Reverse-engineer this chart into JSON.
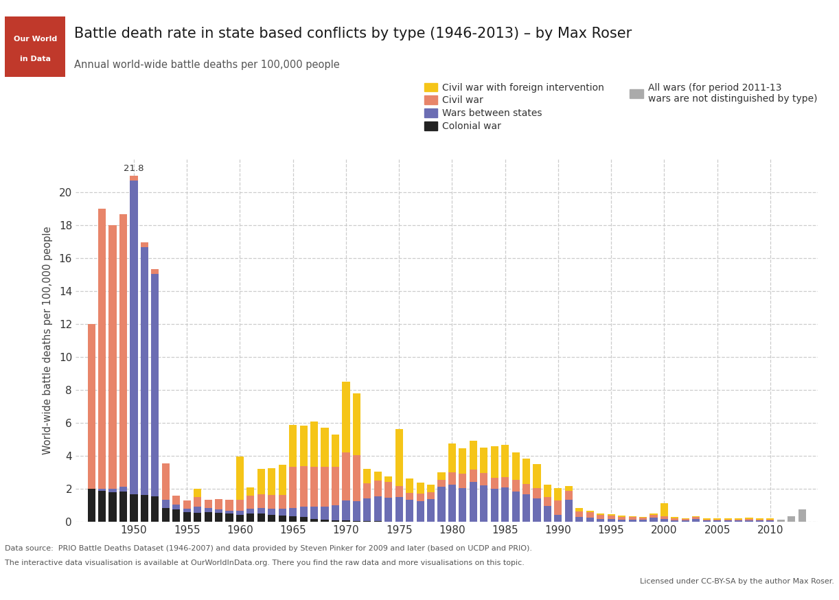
{
  "title": "Battle death rate in state based conflicts by type (1946-2013) – by Max Roser",
  "subtitle": "Annual world-wide battle deaths per 100,000 people",
  "ylabel": "World-wide battle deaths per 100,000 people",
  "source_line1": "Data source:  PRIO Battle Deaths Dataset (1946-2007) and data provided by Steven Pinker for 2009 and later (based on UCDP and PRIO).",
  "source_line2": "The interactive data visualisation is available at OurWorldInData.org. There you find the raw data and more visualisations on this topic.",
  "license_text": "Licensed under CC-BY-SA by the author Max Roser.",
  "colors": {
    "civil_war_foreign": "#F5C518",
    "civil_war": "#E8856A",
    "wars_between_states": "#6B6DB3",
    "colonial_war": "#222222",
    "all_wars": "#AAAAAA"
  },
  "legend_labels": {
    "civil_war_foreign": "Civil war with foreign intervention",
    "civil_war": "Civil war",
    "wars_between_states": "Wars between states",
    "colonial_war": "Colonial war",
    "all_wars_line1": "All wars (for period 2011-13",
    "all_wars_line2": "wars are not distinguished by type)"
  },
  "years": [
    1946,
    1947,
    1948,
    1949,
    1950,
    1951,
    1952,
    1953,
    1954,
    1955,
    1956,
    1957,
    1958,
    1959,
    1960,
    1961,
    1962,
    1963,
    1964,
    1965,
    1966,
    1967,
    1968,
    1969,
    1970,
    1971,
    1972,
    1973,
    1974,
    1975,
    1976,
    1977,
    1978,
    1979,
    1980,
    1981,
    1982,
    1983,
    1984,
    1985,
    1986,
    1987,
    1988,
    1989,
    1990,
    1991,
    1992,
    1993,
    1994,
    1995,
    1996,
    1997,
    1998,
    1999,
    2000,
    2001,
    2002,
    2003,
    2004,
    2005,
    2006,
    2007,
    2008,
    2009,
    2010,
    2011,
    2012,
    2013
  ],
  "colonial_war": [
    2.0,
    1.9,
    1.8,
    1.85,
    1.7,
    1.65,
    1.55,
    0.85,
    0.75,
    0.6,
    0.55,
    0.6,
    0.55,
    0.5,
    0.45,
    0.5,
    0.5,
    0.45,
    0.4,
    0.35,
    0.3,
    0.2,
    0.15,
    0.1,
    0.1,
    0.05,
    0.05,
    0.05,
    0.03,
    0.03,
    0.03,
    0.02,
    0.02,
    0.02,
    0.02,
    0.02,
    0.01,
    0.01,
    0.01,
    0.01,
    0.01,
    0.01,
    0.01,
    0.01,
    0.0,
    0.0,
    0.0,
    0.0,
    0.0,
    0.0,
    0.0,
    0.0,
    0.0,
    0.0,
    0.0,
    0.0,
    0.0,
    0.0,
    0.0,
    0.0,
    0.0,
    0.0,
    0.0,
    0.0,
    0.0,
    0.0,
    0.0,
    0.0
  ],
  "wars_between": [
    0.0,
    0.1,
    0.2,
    0.3,
    19.0,
    15.0,
    13.5,
    0.5,
    0.3,
    0.2,
    0.4,
    0.25,
    0.2,
    0.2,
    0.25,
    0.3,
    0.35,
    0.35,
    0.4,
    0.5,
    0.65,
    0.75,
    0.8,
    0.9,
    1.2,
    1.2,
    1.4,
    1.5,
    1.45,
    1.5,
    1.3,
    1.25,
    1.35,
    2.1,
    2.25,
    2.05,
    2.4,
    2.2,
    2.0,
    2.1,
    1.85,
    1.65,
    1.4,
    0.95,
    0.45,
    1.35,
    0.3,
    0.28,
    0.2,
    0.18,
    0.14,
    0.12,
    0.12,
    0.25,
    0.18,
    0.1,
    0.1,
    0.18,
    0.08,
    0.08,
    0.08,
    0.08,
    0.08,
    0.08,
    0.08,
    0.0,
    0.0,
    0.0
  ],
  "civil_war": [
    10.0,
    17.0,
    16.0,
    16.5,
    0.3,
    0.28,
    0.28,
    2.2,
    0.55,
    0.5,
    0.55,
    0.5,
    0.65,
    0.65,
    0.65,
    0.8,
    0.85,
    0.85,
    0.85,
    2.5,
    2.45,
    2.4,
    2.4,
    2.35,
    2.9,
    2.8,
    0.9,
    0.95,
    0.95,
    0.65,
    0.45,
    0.45,
    0.45,
    0.45,
    0.75,
    0.85,
    0.75,
    0.75,
    0.65,
    0.6,
    0.7,
    0.65,
    0.65,
    0.55,
    0.85,
    0.55,
    0.35,
    0.3,
    0.25,
    0.22,
    0.18,
    0.18,
    0.13,
    0.18,
    0.18,
    0.13,
    0.08,
    0.12,
    0.08,
    0.08,
    0.08,
    0.08,
    0.12,
    0.08,
    0.08,
    0.0,
    0.0,
    0.0
  ],
  "civil_foreign": [
    0.0,
    0.0,
    0.0,
    0.0,
    0.0,
    0.0,
    0.0,
    0.0,
    0.0,
    0.0,
    0.5,
    0.0,
    0.0,
    0.0,
    2.6,
    0.5,
    1.5,
    1.6,
    1.8,
    2.55,
    2.45,
    2.75,
    2.35,
    1.95,
    4.3,
    3.75,
    0.85,
    0.55,
    0.35,
    3.45,
    0.85,
    0.65,
    0.45,
    0.45,
    1.75,
    1.55,
    1.75,
    1.55,
    1.95,
    1.95,
    1.65,
    1.55,
    1.45,
    0.75,
    0.75,
    0.28,
    0.18,
    0.1,
    0.08,
    0.08,
    0.08,
    0.05,
    0.05,
    0.08,
    0.78,
    0.08,
    0.05,
    0.05,
    0.05,
    0.05,
    0.05,
    0.05,
    0.05,
    0.05,
    0.05,
    0.0,
    0.0,
    0.0
  ],
  "all_wars": [
    0.0,
    0.0,
    0.0,
    0.0,
    0.0,
    0.0,
    0.0,
    0.0,
    0.0,
    0.0,
    0.0,
    0.0,
    0.0,
    0.0,
    0.0,
    0.0,
    0.0,
    0.0,
    0.0,
    0.0,
    0.0,
    0.0,
    0.0,
    0.0,
    0.0,
    0.0,
    0.0,
    0.0,
    0.0,
    0.0,
    0.0,
    0.0,
    0.0,
    0.0,
    0.0,
    0.0,
    0.0,
    0.0,
    0.0,
    0.0,
    0.0,
    0.0,
    0.0,
    0.0,
    0.0,
    0.0,
    0.0,
    0.0,
    0.0,
    0.0,
    0.0,
    0.0,
    0.0,
    0.0,
    0.0,
    0.0,
    0.0,
    0.0,
    0.0,
    0.0,
    0.0,
    0.0,
    0.0,
    0.0,
    0.0,
    0.15,
    0.35,
    0.75
  ],
  "ylim": [
    0,
    22
  ],
  "yticks": [
    0,
    2,
    4,
    6,
    8,
    10,
    12,
    14,
    16,
    18,
    20
  ],
  "xtick_years": [
    1950,
    1955,
    1960,
    1965,
    1970,
    1975,
    1980,
    1985,
    1990,
    1995,
    2000,
    2005,
    2010
  ],
  "background_color": "#FFFFFF",
  "grid_color": "#CCCCCC"
}
